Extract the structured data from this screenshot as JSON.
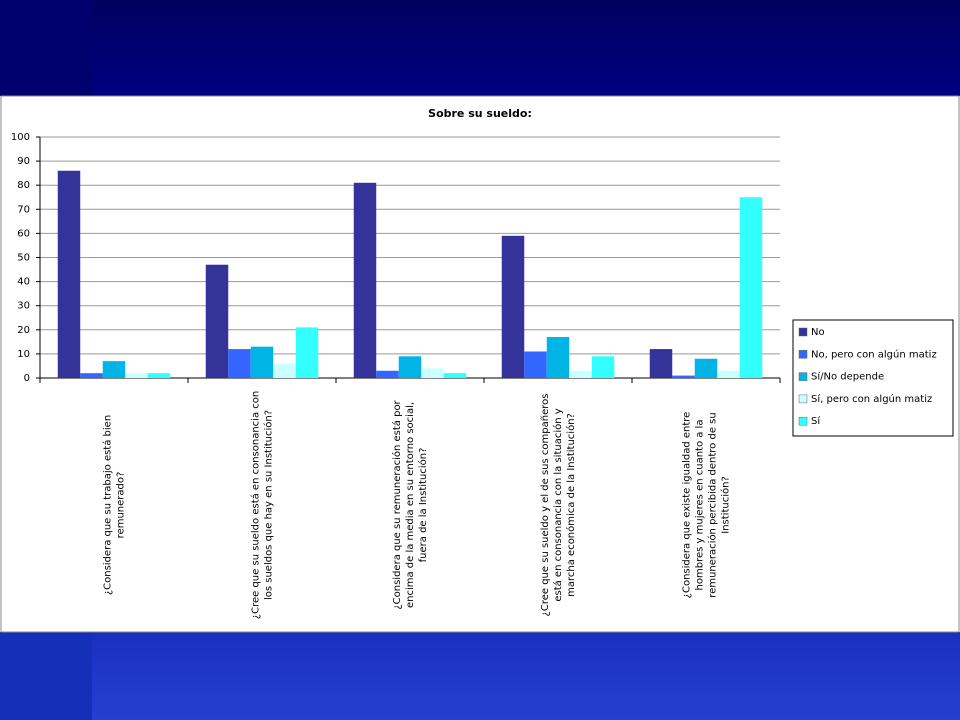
{
  "chart_data": {
    "type": "bar",
    "title": "Sobre su sueldo:",
    "categories": [
      "¿Considera que su trabajo está bien remunerado?",
      "¿Cree que su sueldo está en consonancia con los sueldos que hay en su Institución?",
      "¿Considera que su remuneración está por encima de la media en su entorno social, fuera de la Institución?",
      "¿Cree que su sueldo y el de sus compañeros está en consonancia con la situación y marcha económica de la Institución?",
      "¿Considera que existe igualdad entre hombres y mujeres en cuanto a la remuneración percibida dentro de su Institución?"
    ],
    "series": [
      {
        "name": "No",
        "color": "#333399",
        "values": [
          86,
          47,
          81,
          59,
          12
        ]
      },
      {
        "name": "No, pero con algún matiz",
        "color": "#3366ff",
        "values": [
          2,
          12,
          3,
          11,
          1
        ]
      },
      {
        "name": "Sí/No depende",
        "color": "#00b4e6",
        "values": [
          7,
          13,
          9,
          17,
          8
        ]
      },
      {
        "name": "Sí, pero con algún matiz",
        "color": "#ccffff",
        "values": [
          2,
          6,
          4,
          3,
          3
        ]
      },
      {
        "name": "Sí",
        "color": "#33ffff",
        "values": [
          2,
          21,
          2,
          9,
          75
        ]
      }
    ],
    "ylim": [
      0,
      100
    ],
    "yticks": [
      0,
      10,
      20,
      30,
      40,
      50,
      60,
      70,
      80,
      90,
      100
    ],
    "grid": true,
    "legend": "right"
  }
}
